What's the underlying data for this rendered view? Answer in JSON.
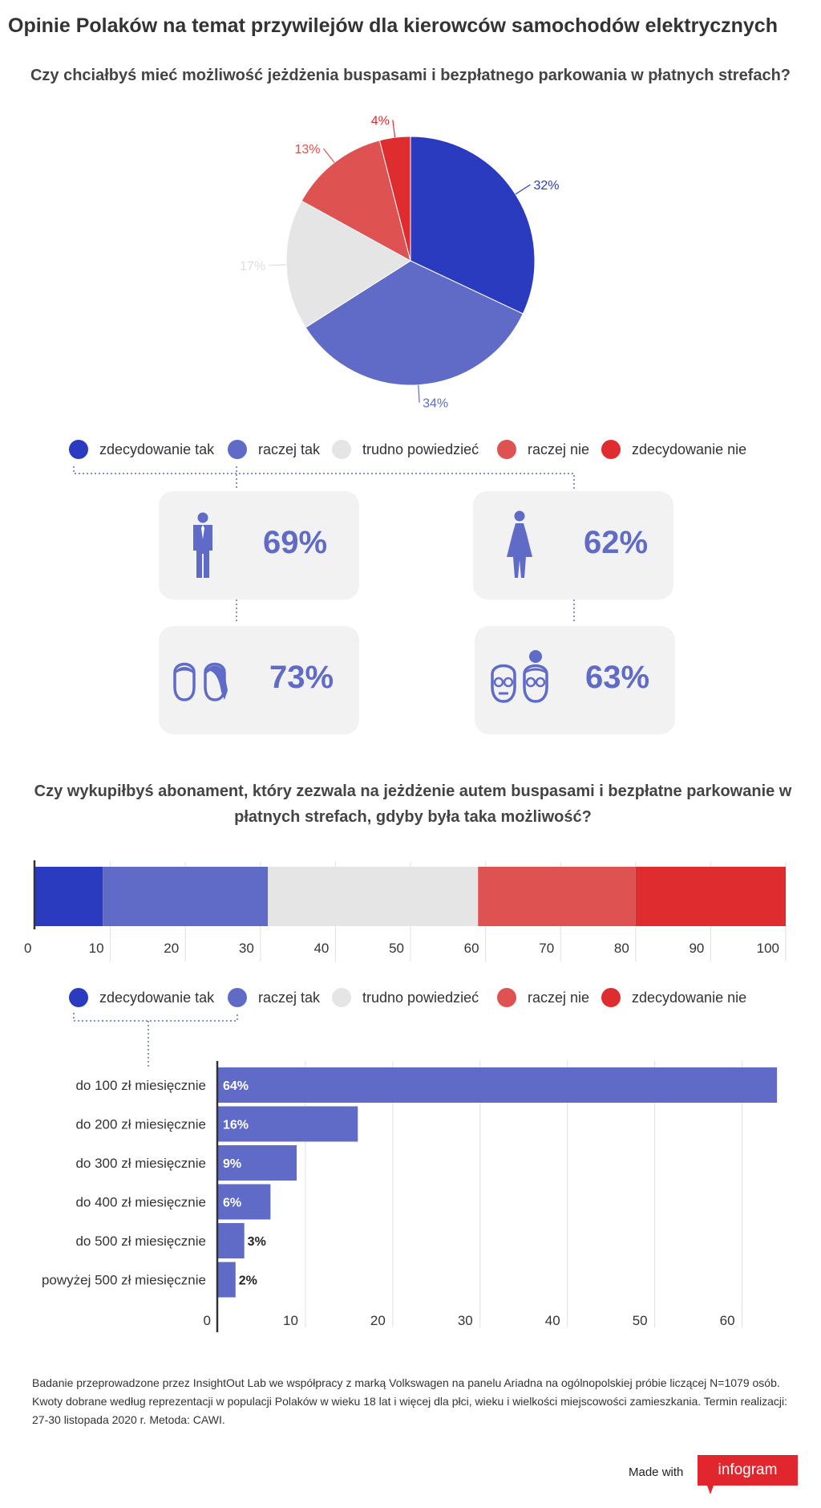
{
  "title": "Opinie Polaków na temat przywilejów dla kierowców samochodów elektrycznych",
  "colors": {
    "zdecydowanie_tak": "#2a3bbf",
    "raczej_tak": "#5f6bc6",
    "trudno_powiedziec": "#e5e5e5",
    "raczej_nie": "#de5252",
    "zdecydowanie_nie": "#df2c2f",
    "pie_label_light": "#dddddd",
    "card_bg": "#f2f2f2"
  },
  "legend": [
    {
      "label": "zdecydowanie tak",
      "color": "#2a3bbf"
    },
    {
      "label": "raczej tak",
      "color": "#5f6bc6"
    },
    {
      "label": "trudno powiedzieć",
      "color": "#e5e5e5"
    },
    {
      "label": "raczej nie",
      "color": "#de5252"
    },
    {
      "label": "zdecydowanie nie",
      "color": "#df2c2f"
    }
  ],
  "cards": {
    "men": {
      "value": "69%",
      "icon": "man-icon"
    },
    "women": {
      "value": "62%",
      "icon": "woman-icon"
    },
    "young": {
      "value": "73%",
      "icon": "young-people-icon"
    },
    "seniors": {
      "value": "63%",
      "icon": "senior-people-icon"
    }
  },
  "footnote": "Badanie przeprowadzone przez InsightOut Lab we współpracy z marką Volkswagen na panelu Ariadna na ogólnopolskiej próbie liczącej N=1079 osób. Kwoty dobrane według reprezentacji w populacji Polaków w wieku 18 lat i więcej dla płci, wieku i wielkości miejscowości zamieszkania. Termin realizacji: 27-30 listopada 2020 r. Metoda: CAWI.",
  "made_with": "Made with",
  "logo": "infogram",
  "chart_data": [
    {
      "type": "pie",
      "title": "Czy chciałbyś mieć możliwość jeżdżenia buspasami i bezpłatnego parkowania w płatnych strefach?",
      "labels": [
        "zdecydowanie tak",
        "raczej tak",
        "trudno powiedzieć",
        "raczej nie",
        "zdecydowanie nie"
      ],
      "values": [
        32,
        34,
        17,
        13,
        4
      ],
      "value_labels": [
        "32%",
        "34%",
        "17%",
        "13%",
        "4%"
      ],
      "colors": [
        "#2a3bbf",
        "#5f6bc6",
        "#e5e5e5",
        "#de5252",
        "#df2c2f"
      ],
      "label_colors": [
        "#2a3bbf",
        "#5f6bc6",
        "#dddddd",
        "#de5252",
        "#df2c2f"
      ]
    },
    {
      "type": "bar",
      "orientation": "horizontal-stacked",
      "title": "Czy wykupiłbyś abonament, który zezwala na jeżdżenie autem buspasami i bezpłatne parkowanie w płatnych strefach, gdyby była taka możliwość?",
      "series": [
        {
          "name": "zdecydowanie tak",
          "value": 9,
          "color": "#2a3bbf"
        },
        {
          "name": "raczej tak",
          "value": 22,
          "color": "#5f6bc6"
        },
        {
          "name": "trudno powiedzieć",
          "value": 28,
          "color": "#e5e5e5"
        },
        {
          "name": "raczej nie",
          "value": 21,
          "color": "#de5252"
        },
        {
          "name": "zdecydowanie nie",
          "value": 20,
          "color": "#df2c2f"
        }
      ],
      "xlim": [
        0,
        100
      ],
      "ticks": [
        "0",
        "10",
        "20",
        "30",
        "40",
        "50",
        "60",
        "70",
        "80",
        "90",
        "100"
      ]
    },
    {
      "type": "bar",
      "orientation": "horizontal",
      "categories": [
        "do 100 zł miesięcznie",
        "do 200 zł miesięcznie",
        "do 300 zł miesięcznie",
        "do 400 zł miesięcznie",
        "do 500 zł miesięcznie",
        "powyżej 500 zł miesięcznie"
      ],
      "values": [
        64,
        16,
        9,
        6,
        3,
        2
      ],
      "value_labels": [
        "64%",
        "16%",
        "9%",
        "6%",
        "3%",
        "2%"
      ],
      "color": "#5f6bc6",
      "xlim": [
        0,
        65
      ],
      "ticks": [
        "0",
        "10",
        "20",
        "30",
        "40",
        "50",
        "60"
      ]
    }
  ]
}
